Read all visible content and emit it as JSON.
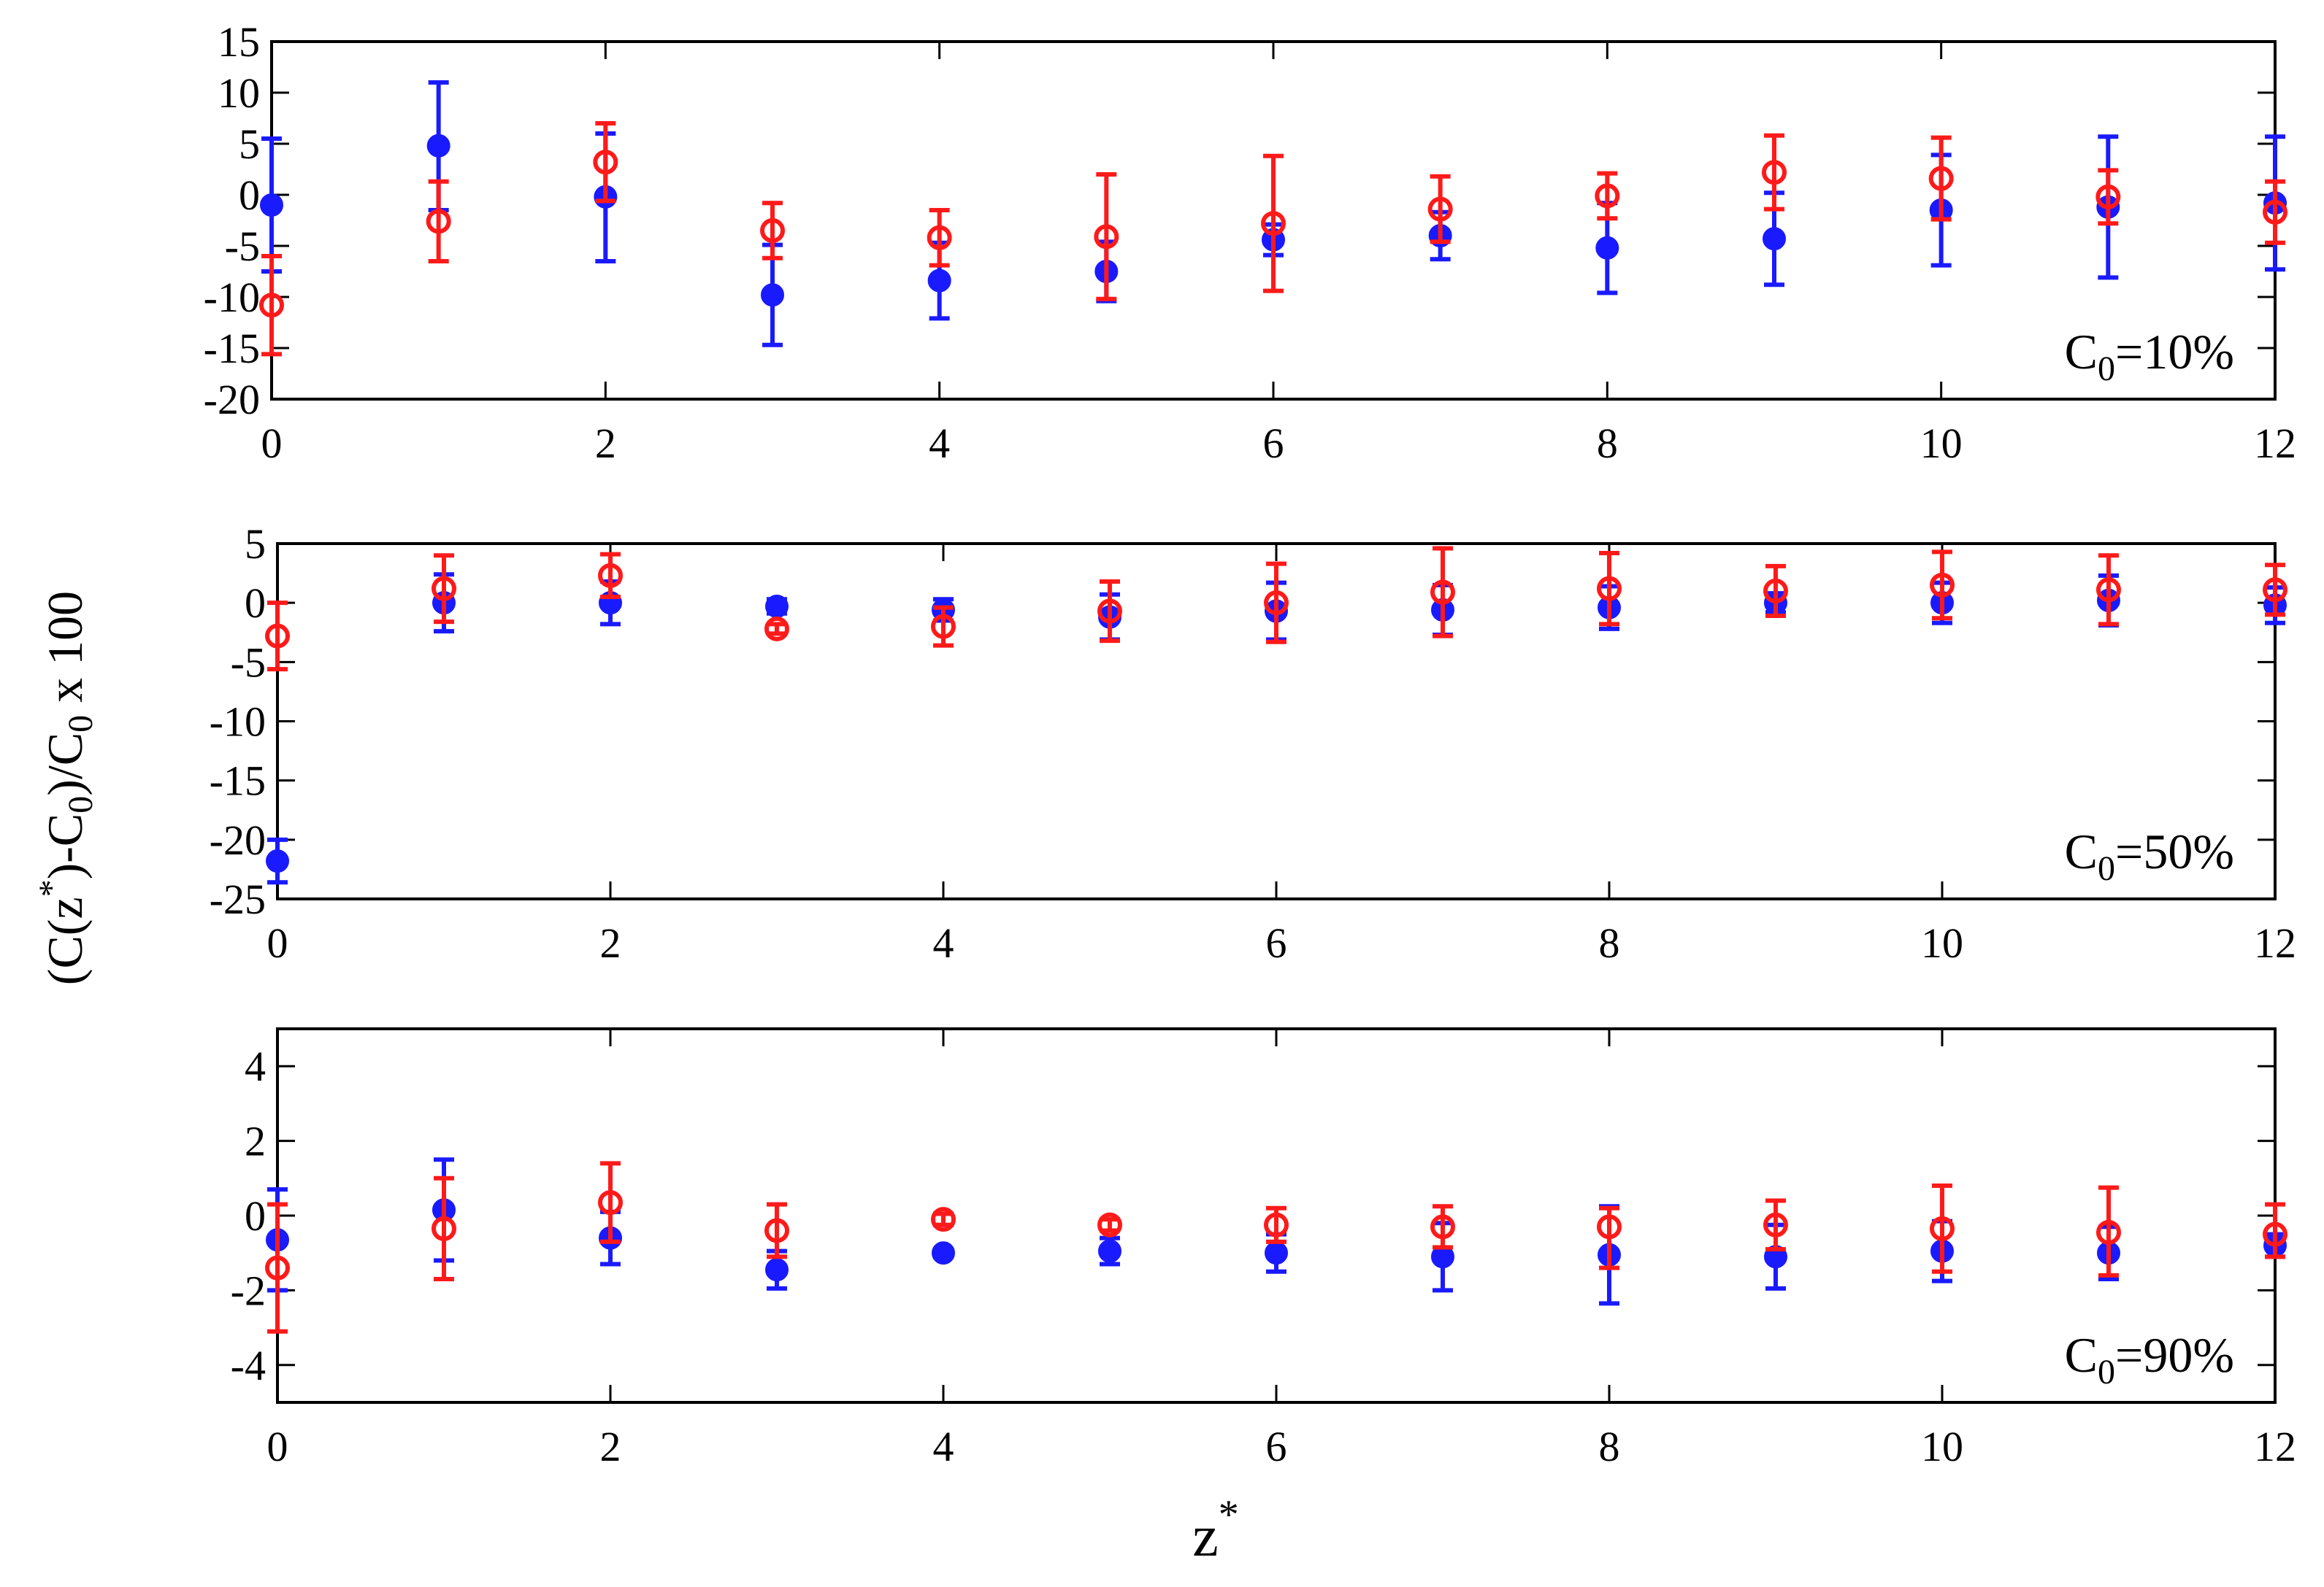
{
  "figure": {
    "ylabel": {
      "pre": "(C(z",
      "sup1": "*",
      "mid": ")-C",
      "sub1": "0",
      "post1": ")/C",
      "sub2": "0",
      "post2": " x 100"
    },
    "xlabel": {
      "main": "z",
      "sup": "*"
    }
  },
  "chart_data": [
    {
      "type": "scatter",
      "annotation": {
        "main": "C",
        "sub": "0",
        "rest": "=10%"
      },
      "xlim": [
        0,
        12
      ],
      "ylim": [
        -20,
        15
      ],
      "xticks": [
        0,
        2,
        4,
        6,
        8,
        10,
        12
      ],
      "yticks": [
        -20,
        -15,
        -10,
        -5,
        0,
        5,
        10,
        15
      ],
      "grid": false,
      "series": [
        {
          "marker": "filled-circle",
          "color": "#1a1aff",
          "points": [
            {
              "x": 0,
              "y": -1,
              "lo": -7.5,
              "hi": 5.5
            },
            {
              "x": 1,
              "y": 4.8,
              "lo": -1.5,
              "hi": 11
            },
            {
              "x": 2,
              "y": -0.2,
              "lo": -6.5,
              "hi": 6
            },
            {
              "x": 3,
              "y": -9.8,
              "lo": -14.7,
              "hi": -4.9
            },
            {
              "x": 4,
              "y": -8.4,
              "lo": -12.1,
              "hi": -4.7
            },
            {
              "x": 5,
              "y": -7.5,
              "lo": -10.4,
              "hi": -4.6
            },
            {
              "x": 6,
              "y": -4.4,
              "lo": -5.9,
              "hi": -2.9
            },
            {
              "x": 7,
              "y": -4,
              "lo": -6.3,
              "hi": -1.7
            },
            {
              "x": 8,
              "y": -5.2,
              "lo": -9.6,
              "hi": -0.8
            },
            {
              "x": 9,
              "y": -4.3,
              "lo": -8.8,
              "hi": 0.2
            },
            {
              "x": 10,
              "y": -1.5,
              "lo": -6.9,
              "hi": 3.9
            },
            {
              "x": 11,
              "y": -1.2,
              "lo": -8.1,
              "hi": 5.7
            },
            {
              "x": 12,
              "y": -0.8,
              "lo": -7.3,
              "hi": 5.7
            }
          ]
        },
        {
          "marker": "open-circle",
          "color": "#ff1a1a",
          "points": [
            {
              "x": 0,
              "y": -10.8,
              "lo": -15.6,
              "hi": -6
            },
            {
              "x": 1,
              "y": -2.6,
              "lo": -6.5,
              "hi": 1.3
            },
            {
              "x": 2,
              "y": 3.2,
              "lo": -0.6,
              "hi": 7
            },
            {
              "x": 3,
              "y": -3.5,
              "lo": -6.2,
              "hi": -0.8
            },
            {
              "x": 4,
              "y": -4.2,
              "lo": -6.9,
              "hi": -1.5
            },
            {
              "x": 5,
              "y": -4.1,
              "lo": -10.2,
              "hi": 2
            },
            {
              "x": 6,
              "y": -2.8,
              "lo": -9.4,
              "hi": 3.8
            },
            {
              "x": 7,
              "y": -1.4,
              "lo": -4.6,
              "hi": 1.8
            },
            {
              "x": 8,
              "y": -0.1,
              "lo": -2.3,
              "hi": 2.1
            },
            {
              "x": 9,
              "y": 2.2,
              "lo": -1.4,
              "hi": 5.8
            },
            {
              "x": 10,
              "y": 1.6,
              "lo": -2.4,
              "hi": 5.6
            },
            {
              "x": 11,
              "y": -0.2,
              "lo": -2.8,
              "hi": 2.4
            },
            {
              "x": 12,
              "y": -1.7,
              "lo": -4.7,
              "hi": 1.3
            }
          ]
        }
      ]
    },
    {
      "type": "scatter",
      "annotation": {
        "main": "C",
        "sub": "0",
        "rest": "=50%"
      },
      "xlim": [
        0,
        12
      ],
      "ylim": [
        -25,
        5
      ],
      "xticks": [
        0,
        2,
        4,
        6,
        8,
        10,
        12
      ],
      "yticks": [
        -25,
        -20,
        -15,
        -10,
        -5,
        0,
        5
      ],
      "grid": false,
      "series": [
        {
          "marker": "filled-circle",
          "color": "#1a1aff",
          "points": [
            {
              "x": 0,
              "y": -21.8,
              "lo": -23.6,
              "hi": -20
            },
            {
              "x": 1,
              "y": 0,
              "lo": -2.4,
              "hi": 2.4
            },
            {
              "x": 2,
              "y": 0,
              "lo": -1.8,
              "hi": 1.8
            },
            {
              "x": 3,
              "y": -0.3,
              "lo": -0.9,
              "hi": 0.3
            },
            {
              "x": 4,
              "y": -0.6,
              "lo": -1.5,
              "hi": 0.3
            },
            {
              "x": 5,
              "y": -1.2,
              "lo": -3.1,
              "hi": 0.7
            },
            {
              "x": 6,
              "y": -0.7,
              "lo": -3.1,
              "hi": 1.7
            },
            {
              "x": 7,
              "y": -0.6,
              "lo": -2.7,
              "hi": 1.5
            },
            {
              "x": 8,
              "y": -0.4,
              "lo": -2.2,
              "hi": 1.4
            },
            {
              "x": 9,
              "y": 0,
              "lo": -0.8,
              "hi": 0.8
            },
            {
              "x": 10,
              "y": 0,
              "lo": -1.7,
              "hi": 1.7
            },
            {
              "x": 11,
              "y": 0.2,
              "lo": -1.9,
              "hi": 2.3
            },
            {
              "x": 12,
              "y": -0.2,
              "lo": -1.7,
              "hi": 1.3
            }
          ]
        },
        {
          "marker": "open-circle",
          "color": "#ff1a1a",
          "points": [
            {
              "x": 0,
              "y": -2.8,
              "lo": -5.6,
              "hi": 0
            },
            {
              "x": 1,
              "y": 1.2,
              "lo": -1.6,
              "hi": 4
            },
            {
              "x": 2,
              "y": 2.3,
              "lo": 0.5,
              "hi": 4.1
            },
            {
              "x": 3,
              "y": -2.2,
              "lo": -2.6,
              "hi": -1.8
            },
            {
              "x": 4,
              "y": -2,
              "lo": -3.6,
              "hi": -0.4
            },
            {
              "x": 5,
              "y": -0.7,
              "lo": -3.2,
              "hi": 1.8
            },
            {
              "x": 6,
              "y": 0,
              "lo": -3.3,
              "hi": 3.3
            },
            {
              "x": 7,
              "y": 0.9,
              "lo": -2.8,
              "hi": 4.6
            },
            {
              "x": 8,
              "y": 1.2,
              "lo": -1.8,
              "hi": 4.2
            },
            {
              "x": 9,
              "y": 1,
              "lo": -1.1,
              "hi": 3.1
            },
            {
              "x": 10,
              "y": 1.5,
              "lo": -1.3,
              "hi": 4.3
            },
            {
              "x": 11,
              "y": 1.1,
              "lo": -1.8,
              "hi": 4
            },
            {
              "x": 12,
              "y": 1.1,
              "lo": -1,
              "hi": 3.2
            }
          ]
        }
      ]
    },
    {
      "type": "scatter",
      "annotation": {
        "main": "C",
        "sub": "0",
        "rest": "=90%"
      },
      "xlim": [
        0,
        12
      ],
      "ylim": [
        -5,
        5
      ],
      "xticks": [
        0,
        2,
        4,
        6,
        8,
        10,
        12
      ],
      "yticks": [
        -4,
        -2,
        0,
        2,
        4
      ],
      "grid": false,
      "series": [
        {
          "marker": "filled-circle",
          "color": "#1a1aff",
          "points": [
            {
              "x": 0,
              "y": -0.65,
              "lo": -2,
              "hi": 0.7
            },
            {
              "x": 1,
              "y": 0.15,
              "lo": -1.2,
              "hi": 1.5
            },
            {
              "x": 2,
              "y": -0.6,
              "lo": -1.3,
              "hi": 0.1
            },
            {
              "x": 3,
              "y": -1.45,
              "lo": -1.95,
              "hi": -0.95
            },
            {
              "x": 4,
              "y": -1,
              "lo": -1.1,
              "hi": -0.9
            },
            {
              "x": 5,
              "y": -0.95,
              "lo": -1.3,
              "hi": -0.6
            },
            {
              "x": 6,
              "y": -1,
              "lo": -1.5,
              "hi": -0.5
            },
            {
              "x": 7,
              "y": -1.1,
              "lo": -2,
              "hi": -0.2
            },
            {
              "x": 8,
              "y": -1.05,
              "lo": -2.35,
              "hi": 0.25
            },
            {
              "x": 9,
              "y": -1.1,
              "lo": -1.95,
              "hi": -0.25
            },
            {
              "x": 10,
              "y": -0.95,
              "lo": -1.75,
              "hi": -0.15
            },
            {
              "x": 11,
              "y": -1,
              "lo": -1.7,
              "hi": -0.3
            },
            {
              "x": 12,
              "y": -0.8,
              "lo": -1.1,
              "hi": -0.5
            }
          ]
        },
        {
          "marker": "open-circle",
          "color": "#ff1a1a",
          "points": [
            {
              "x": 0,
              "y": -1.4,
              "lo": -3.1,
              "hi": 0.3
            },
            {
              "x": 1,
              "y": -0.35,
              "lo": -1.7,
              "hi": 1
            },
            {
              "x": 2,
              "y": 0.35,
              "lo": -0.7,
              "hi": 1.4
            },
            {
              "x": 3,
              "y": -0.4,
              "lo": -1.1,
              "hi": 0.3
            },
            {
              "x": 4,
              "y": -0.1,
              "lo": -0.25,
              "hi": 0.05
            },
            {
              "x": 5,
              "y": -0.25,
              "lo": -0.4,
              "hi": -0.1
            },
            {
              "x": 6,
              "y": -0.25,
              "lo": -0.7,
              "hi": 0.2
            },
            {
              "x": 7,
              "y": -0.3,
              "lo": -0.85,
              "hi": 0.25
            },
            {
              "x": 8,
              "y": -0.3,
              "lo": -1.4,
              "hi": 0.2
            },
            {
              "x": 9,
              "y": -0.25,
              "lo": -0.9,
              "hi": 0.4
            },
            {
              "x": 10,
              "y": -0.35,
              "lo": -1.5,
              "hi": 0.8
            },
            {
              "x": 11,
              "y": -0.45,
              "lo": -1.6,
              "hi": 0.75
            },
            {
              "x": 12,
              "y": -0.5,
              "lo": -1.1,
              "hi": 0.3
            }
          ]
        }
      ]
    }
  ]
}
